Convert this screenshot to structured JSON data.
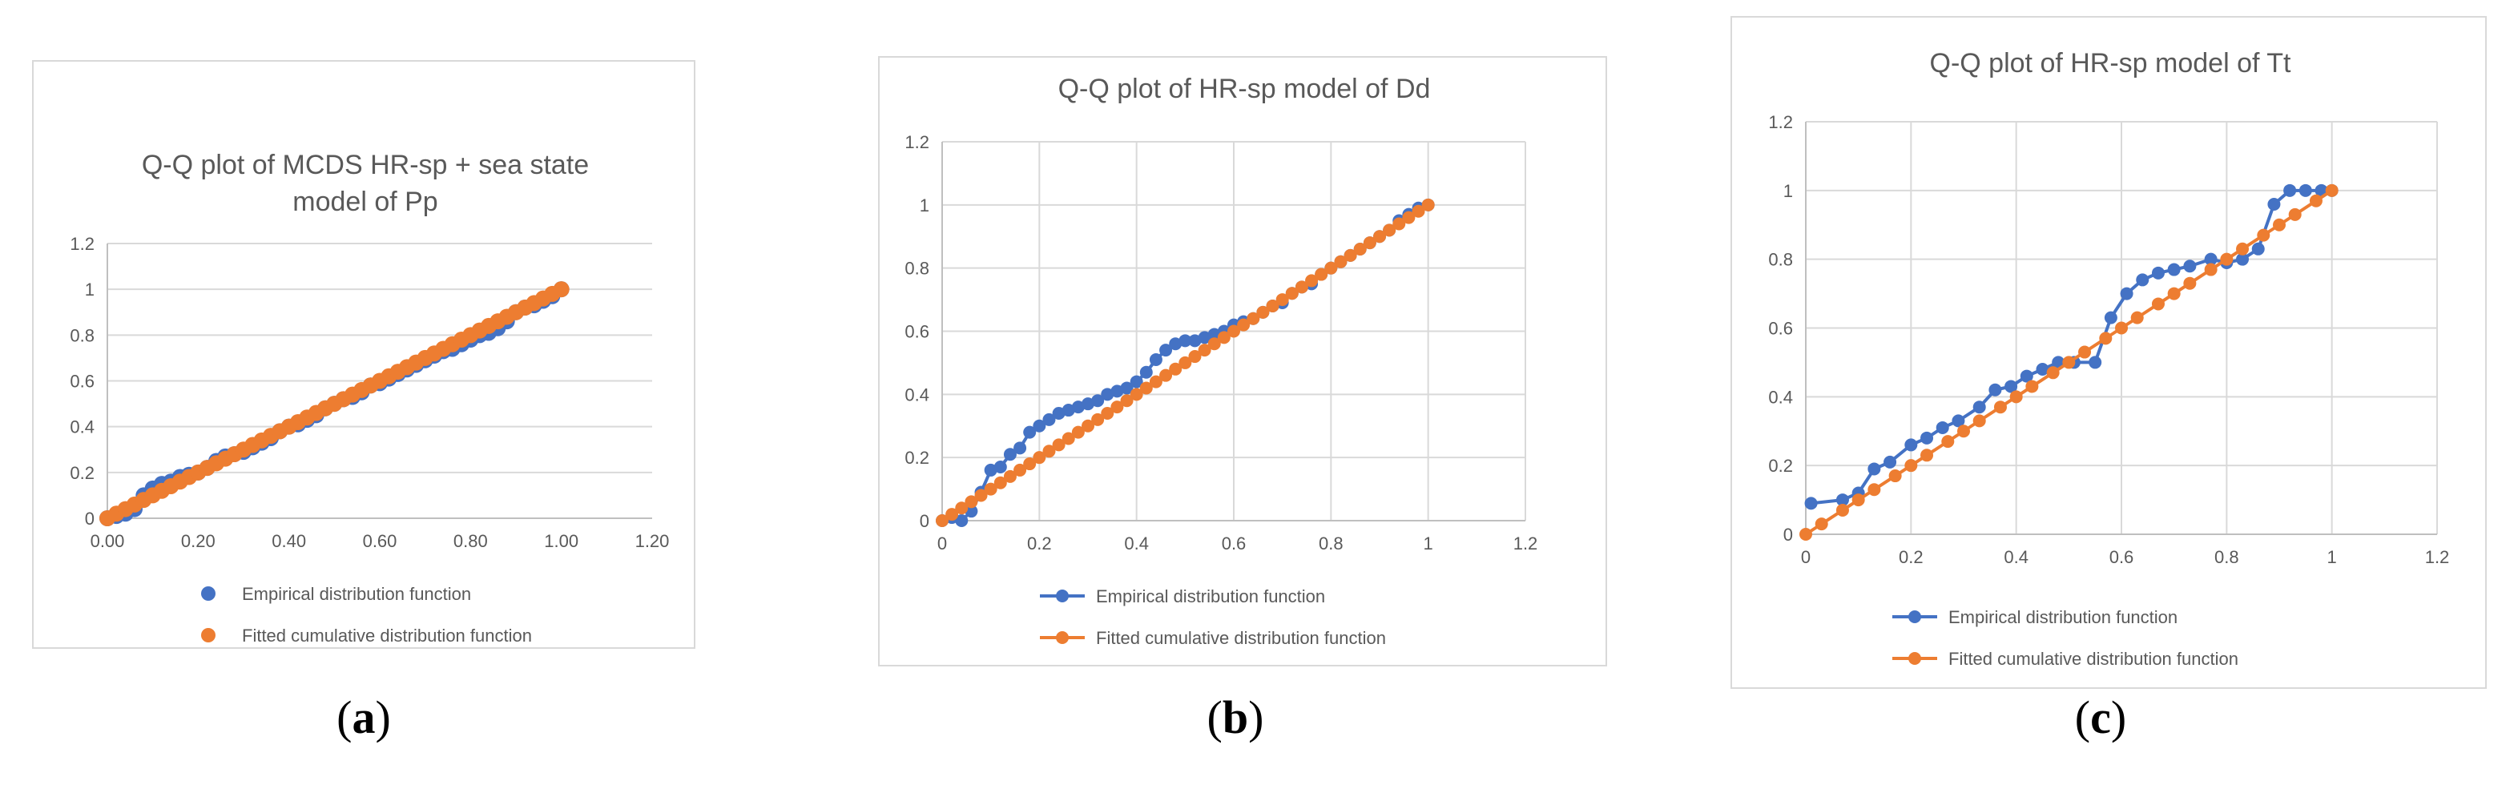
{
  "colors": {
    "empirical": "#4472c4",
    "fitted": "#ed7d31",
    "grid": "#d9d9d9",
    "text": "#595959"
  },
  "chart_data": [
    {
      "type": "scatter",
      "title": "Q-Q plot of MCDS HR-sp + sea state model of Pp",
      "title_lines": [
        "Q-Q plot of MCDS HR-sp + sea state",
        "model of Pp"
      ],
      "caption_label": "a",
      "xlim": [
        0,
        1.2
      ],
      "ylim": [
        0,
        1.2
      ],
      "x_ticks": [
        "0.00",
        "0.20",
        "0.40",
        "0.60",
        "0.80",
        "1.00",
        "1.20"
      ],
      "y_ticks": [
        "0",
        "0.2",
        "0.4",
        "0.6",
        "0.8",
        "1",
        "1.2"
      ],
      "grid": "horizontal",
      "legend_position": "bottom",
      "lines": false,
      "series": [
        {
          "name": "Empirical distribution function",
          "color": "#4472c4",
          "x": [
            0,
            0.02,
            0.04,
            0.06,
            0.08,
            0.1,
            0.12,
            0.14,
            0.16,
            0.18,
            0.2,
            0.22,
            0.24,
            0.26,
            0.28,
            0.3,
            0.32,
            0.34,
            0.36,
            0.38,
            0.4,
            0.42,
            0.44,
            0.46,
            0.48,
            0.5,
            0.52,
            0.54,
            0.56,
            0.58,
            0.6,
            0.62,
            0.64,
            0.66,
            0.68,
            0.7,
            0.72,
            0.74,
            0.76,
            0.78,
            0.8,
            0.82,
            0.84,
            0.86,
            0.88,
            0.9,
            0.92,
            0.94,
            0.96,
            0.98,
            1.0
          ],
          "y": [
            0,
            0.01,
            0.02,
            0.04,
            0.1,
            0.13,
            0.15,
            0.16,
            0.18,
            0.19,
            0.2,
            0.22,
            0.25,
            0.27,
            0.28,
            0.29,
            0.31,
            0.33,
            0.35,
            0.38,
            0.4,
            0.41,
            0.43,
            0.45,
            0.48,
            0.5,
            0.52,
            0.53,
            0.55,
            0.58,
            0.59,
            0.61,
            0.63,
            0.65,
            0.67,
            0.69,
            0.71,
            0.73,
            0.74,
            0.76,
            0.78,
            0.8,
            0.81,
            0.83,
            0.86,
            0.9,
            0.92,
            0.93,
            0.95,
            0.97,
            1.0
          ]
        },
        {
          "name": "Fitted cumulative distribution function",
          "color": "#ed7d31",
          "x": [
            0,
            0.02,
            0.04,
            0.06,
            0.08,
            0.1,
            0.12,
            0.14,
            0.16,
            0.18,
            0.2,
            0.22,
            0.24,
            0.26,
            0.28,
            0.3,
            0.32,
            0.34,
            0.36,
            0.38,
            0.4,
            0.42,
            0.44,
            0.46,
            0.48,
            0.5,
            0.52,
            0.54,
            0.56,
            0.58,
            0.6,
            0.62,
            0.64,
            0.66,
            0.68,
            0.7,
            0.72,
            0.74,
            0.76,
            0.78,
            0.8,
            0.82,
            0.84,
            0.86,
            0.88,
            0.9,
            0.92,
            0.94,
            0.96,
            0.98,
            1.0
          ],
          "y": [
            0,
            0.02,
            0.04,
            0.06,
            0.08,
            0.1,
            0.12,
            0.14,
            0.16,
            0.18,
            0.2,
            0.22,
            0.24,
            0.26,
            0.28,
            0.3,
            0.32,
            0.34,
            0.36,
            0.38,
            0.4,
            0.42,
            0.44,
            0.46,
            0.48,
            0.5,
            0.52,
            0.54,
            0.56,
            0.58,
            0.6,
            0.62,
            0.64,
            0.66,
            0.68,
            0.7,
            0.72,
            0.74,
            0.76,
            0.78,
            0.8,
            0.82,
            0.84,
            0.86,
            0.88,
            0.9,
            0.92,
            0.94,
            0.96,
            0.98,
            1.0
          ]
        }
      ]
    },
    {
      "type": "line",
      "title": "Q-Q plot of HR-sp model of Dd",
      "title_lines": [
        "Q-Q plot of HR-sp model of Dd"
      ],
      "caption_label": "b",
      "xlim": [
        0,
        1.2
      ],
      "ylim": [
        0,
        1.2
      ],
      "x_ticks": [
        "0",
        "0.2",
        "0.4",
        "0.6",
        "0.8",
        "1",
        "1.2"
      ],
      "y_ticks": [
        "0",
        "0.2",
        "0.4",
        "0.6",
        "0.8",
        "1",
        "1.2"
      ],
      "grid": "both",
      "legend_position": "bottom",
      "lines": true,
      "series": [
        {
          "name": "Empirical distribution function",
          "color": "#4472c4",
          "x": [
            0,
            0.02,
            0.04,
            0.06,
            0.08,
            0.1,
            0.12,
            0.14,
            0.16,
            0.18,
            0.2,
            0.22,
            0.24,
            0.26,
            0.28,
            0.3,
            0.32,
            0.34,
            0.36,
            0.38,
            0.4,
            0.42,
            0.44,
            0.46,
            0.48,
            0.5,
            0.52,
            0.54,
            0.56,
            0.58,
            0.6,
            0.62,
            0.64,
            0.66,
            0.68,
            0.7,
            0.72,
            0.74,
            0.76,
            0.78,
            0.8,
            0.82,
            0.84,
            0.86,
            0.88,
            0.9,
            0.92,
            0.94,
            0.96,
            0.98,
            1.0
          ],
          "y": [
            0,
            0.01,
            0.0,
            0.03,
            0.09,
            0.16,
            0.17,
            0.21,
            0.23,
            0.28,
            0.3,
            0.32,
            0.34,
            0.35,
            0.36,
            0.37,
            0.38,
            0.4,
            0.41,
            0.42,
            0.44,
            0.47,
            0.51,
            0.54,
            0.56,
            0.57,
            0.57,
            0.58,
            0.59,
            0.6,
            0.62,
            0.63,
            0.64,
            0.66,
            0.68,
            0.69,
            0.72,
            0.74,
            0.75,
            0.78,
            0.8,
            0.82,
            0.84,
            0.86,
            0.88,
            0.9,
            0.92,
            0.95,
            0.97,
            0.99,
            1.0
          ]
        },
        {
          "name": "Fitted cumulative distribution function",
          "color": "#ed7d31",
          "x": [
            0,
            0.02,
            0.04,
            0.06,
            0.08,
            0.1,
            0.12,
            0.14,
            0.16,
            0.18,
            0.2,
            0.22,
            0.24,
            0.26,
            0.28,
            0.3,
            0.32,
            0.34,
            0.36,
            0.38,
            0.4,
            0.42,
            0.44,
            0.46,
            0.48,
            0.5,
            0.52,
            0.54,
            0.56,
            0.58,
            0.6,
            0.62,
            0.64,
            0.66,
            0.68,
            0.7,
            0.72,
            0.74,
            0.76,
            0.78,
            0.8,
            0.82,
            0.84,
            0.86,
            0.88,
            0.9,
            0.92,
            0.94,
            0.96,
            0.98,
            1.0
          ],
          "y": [
            0,
            0.02,
            0.04,
            0.06,
            0.08,
            0.1,
            0.12,
            0.14,
            0.16,
            0.18,
            0.2,
            0.22,
            0.24,
            0.26,
            0.28,
            0.3,
            0.32,
            0.34,
            0.36,
            0.38,
            0.4,
            0.42,
            0.44,
            0.46,
            0.48,
            0.5,
            0.52,
            0.54,
            0.56,
            0.58,
            0.6,
            0.62,
            0.64,
            0.66,
            0.68,
            0.7,
            0.72,
            0.74,
            0.76,
            0.78,
            0.8,
            0.82,
            0.84,
            0.86,
            0.88,
            0.9,
            0.92,
            0.94,
            0.96,
            0.98,
            1.0
          ]
        }
      ]
    },
    {
      "type": "line",
      "title": "Q-Q plot of HR-sp model of Tt",
      "title_lines": [
        "Q-Q plot of HR-sp model of Tt"
      ],
      "caption_label": "c",
      "xlim": [
        0,
        1.2
      ],
      "ylim": [
        0,
        1.2
      ],
      "x_ticks": [
        "0",
        "0.2",
        "0.4",
        "0.6",
        "0.8",
        "1",
        "1.2"
      ],
      "y_ticks": [
        "0",
        "0.2",
        "0.4",
        "0.6",
        "0.8",
        "1",
        "1.2"
      ],
      "grid": "both",
      "legend_position": "bottom",
      "lines": true,
      "series": [
        {
          "name": "Empirical distribution function",
          "color": "#4472c4",
          "x": [
            0.01,
            0.07,
            0.1,
            0.13,
            0.16,
            0.2,
            0.23,
            0.26,
            0.29,
            0.33,
            0.36,
            0.39,
            0.42,
            0.45,
            0.48,
            0.51,
            0.55,
            0.58,
            0.61,
            0.64,
            0.67,
            0.7,
            0.73,
            0.77,
            0.8,
            0.83,
            0.86,
            0.89,
            0.92,
            0.95,
            0.98,
            1.0
          ],
          "y": [
            0.09,
            0.1,
            0.12,
            0.19,
            0.21,
            0.26,
            0.28,
            0.31,
            0.33,
            0.37,
            0.42,
            0.43,
            0.46,
            0.48,
            0.5,
            0.5,
            0.5,
            0.63,
            0.7,
            0.74,
            0.76,
            0.77,
            0.78,
            0.8,
            0.79,
            0.8,
            0.83,
            0.96,
            1.0,
            1.0,
            1.0,
            1.0
          ]
        },
        {
          "name": "Fitted cumulative distribution function",
          "color": "#ed7d31",
          "x": [
            0,
            0.03,
            0.07,
            0.1,
            0.13,
            0.17,
            0.2,
            0.23,
            0.27,
            0.3,
            0.33,
            0.37,
            0.4,
            0.43,
            0.47,
            0.5,
            0.53,
            0.57,
            0.6,
            0.63,
            0.67,
            0.7,
            0.73,
            0.77,
            0.8,
            0.83,
            0.87,
            0.9,
            0.93,
            0.97,
            1.0
          ],
          "y": [
            0,
            0.03,
            0.07,
            0.1,
            0.13,
            0.17,
            0.2,
            0.23,
            0.27,
            0.3,
            0.33,
            0.37,
            0.4,
            0.43,
            0.47,
            0.5,
            0.53,
            0.57,
            0.6,
            0.63,
            0.67,
            0.7,
            0.73,
            0.77,
            0.8,
            0.83,
            0.87,
            0.9,
            0.93,
            0.97,
            1.0
          ]
        }
      ]
    }
  ]
}
